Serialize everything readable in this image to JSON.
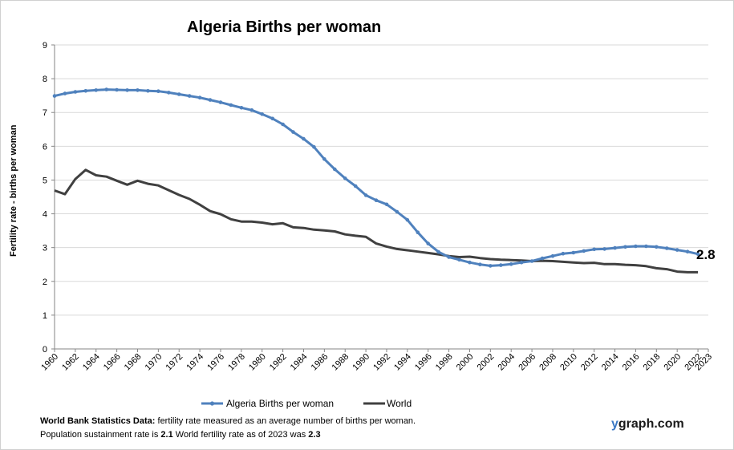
{
  "chart_data": {
    "type": "line",
    "title": "Algeria Births per woman",
    "xlabel": "",
    "ylabel": "Fertility rate  - births per woman",
    "xlim": [
      1960,
      2023
    ],
    "ylim": [
      0,
      9
    ],
    "y_ticks": [
      "0",
      "1",
      "2",
      "3",
      "4",
      "5",
      "6",
      "7",
      "8",
      "9"
    ],
    "x_ticks": [
      "1960",
      "1962",
      "1964",
      "1966",
      "1968",
      "1970",
      "1972",
      "1974",
      "1976",
      "1978",
      "1980",
      "1982",
      "1984",
      "1986",
      "1988",
      "1990",
      "1992",
      "1994",
      "1996",
      "1998",
      "2000",
      "2002",
      "2004",
      "2006",
      "2008",
      "2010",
      "2012",
      "2014",
      "2016",
      "2018",
      "2020",
      "2022",
      "2023"
    ],
    "grid": "horizontal",
    "legend_position": "bottom",
    "end_label": "2.8",
    "series": [
      {
        "name": "Algeria Births per woman",
        "color": "#4f81bd",
        "markers": true,
        "x": [
          1960,
          1961,
          1962,
          1963,
          1964,
          1965,
          1966,
          1967,
          1968,
          1969,
          1970,
          1971,
          1972,
          1973,
          1974,
          1975,
          1976,
          1977,
          1978,
          1979,
          1980,
          1981,
          1982,
          1983,
          1984,
          1985,
          1986,
          1987,
          1988,
          1989,
          1990,
          1991,
          1992,
          1993,
          1994,
          1995,
          1996,
          1997,
          1998,
          1999,
          2000,
          2001,
          2002,
          2003,
          2004,
          2005,
          2006,
          2007,
          2008,
          2009,
          2010,
          2011,
          2012,
          2013,
          2014,
          2015,
          2016,
          2017,
          2018,
          2019,
          2020,
          2021,
          2022
        ],
        "values": [
          7.49,
          7.56,
          7.61,
          7.64,
          7.66,
          7.68,
          7.67,
          7.66,
          7.66,
          7.64,
          7.63,
          7.59,
          7.54,
          7.49,
          7.44,
          7.37,
          7.3,
          7.22,
          7.14,
          7.07,
          6.95,
          6.82,
          6.65,
          6.42,
          6.22,
          5.98,
          5.62,
          5.32,
          5.05,
          4.82,
          4.55,
          4.4,
          4.28,
          4.06,
          3.82,
          3.45,
          3.12,
          2.87,
          2.72,
          2.64,
          2.56,
          2.5,
          2.46,
          2.48,
          2.51,
          2.56,
          2.6,
          2.68,
          2.75,
          2.82,
          2.85,
          2.9,
          2.95,
          2.96,
          2.99,
          3.02,
          3.04,
          3.04,
          3.02,
          2.98,
          2.93,
          2.88,
          2.81
        ]
      },
      {
        "name": "World",
        "color": "#404040",
        "markers": false,
        "x": [
          1960,
          1961,
          1962,
          1963,
          1964,
          1965,
          1966,
          1967,
          1968,
          1969,
          1970,
          1971,
          1972,
          1973,
          1974,
          1975,
          1976,
          1977,
          1978,
          1979,
          1980,
          1981,
          1982,
          1983,
          1984,
          1985,
          1986,
          1987,
          1988,
          1989,
          1990,
          1991,
          1992,
          1993,
          1994,
          1995,
          1996,
          1997,
          1998,
          1999,
          2000,
          2001,
          2002,
          2003,
          2004,
          2005,
          2006,
          2007,
          2008,
          2009,
          2010,
          2011,
          2012,
          2013,
          2014,
          2015,
          2016,
          2017,
          2018,
          2019,
          2020,
          2021,
          2022
        ],
        "values": [
          4.69,
          4.58,
          5.03,
          5.3,
          5.14,
          5.1,
          4.98,
          4.86,
          4.98,
          4.89,
          4.84,
          4.7,
          4.56,
          4.44,
          4.27,
          4.08,
          3.99,
          3.84,
          3.77,
          3.77,
          3.74,
          3.69,
          3.72,
          3.6,
          3.58,
          3.53,
          3.51,
          3.48,
          3.39,
          3.35,
          3.32,
          3.12,
          3.03,
          2.96,
          2.92,
          2.88,
          2.84,
          2.8,
          2.75,
          2.72,
          2.73,
          2.69,
          2.66,
          2.64,
          2.63,
          2.62,
          2.6,
          2.61,
          2.6,
          2.58,
          2.56,
          2.54,
          2.55,
          2.51,
          2.51,
          2.49,
          2.48,
          2.45,
          2.39,
          2.36,
          2.29,
          2.27,
          2.27
        ]
      }
    ]
  },
  "footnote": {
    "line1_bold": "World Bank Statistics Data:",
    "line1_text": " fertility rate measured as an average number  of births per woman.",
    "line2_a": "Population sustainment rate is ",
    "line2_a_val": "2.1",
    "line2_b": "    World fertility rate as of 2023 was ",
    "line2_b_val": "2.3"
  },
  "brand": {
    "y": "y",
    "rest": "graph.com"
  }
}
